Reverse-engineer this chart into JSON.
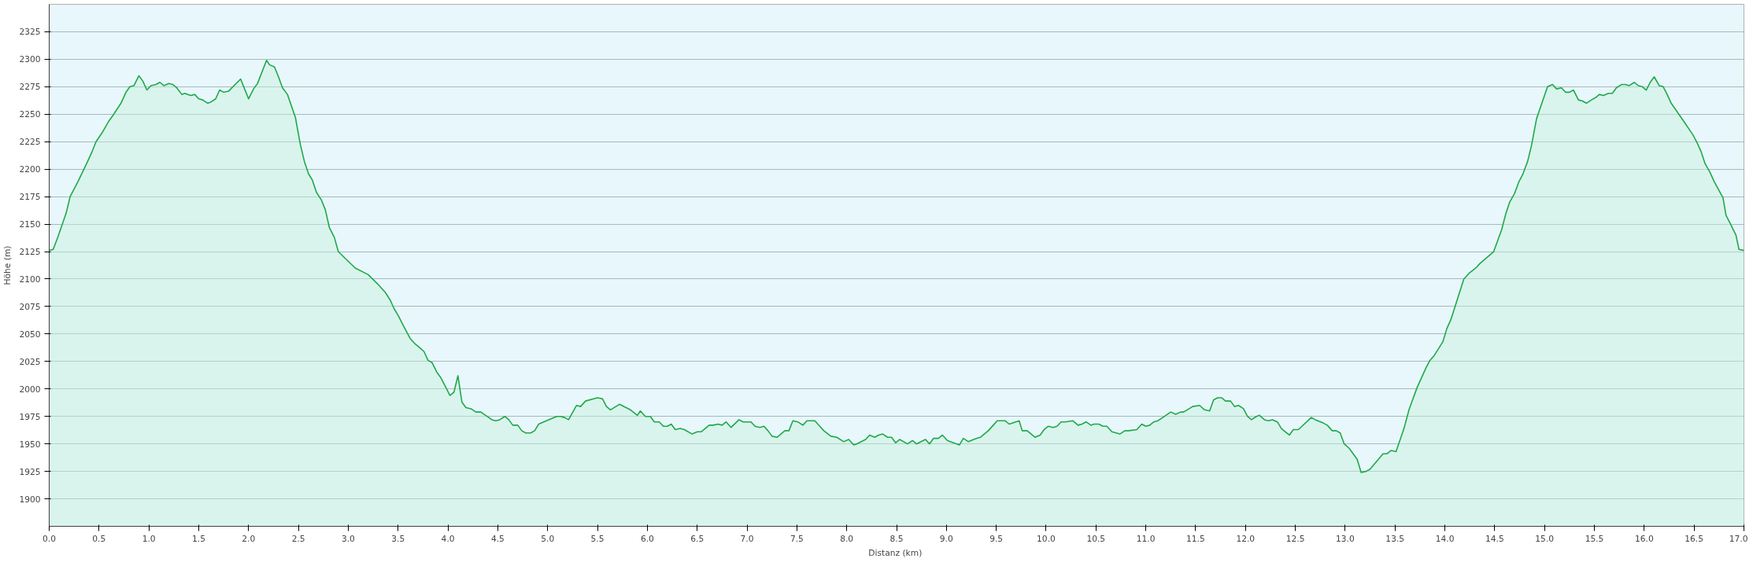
{
  "chart_data": {
    "type": "area",
    "xlabel": "Distanz  (km)",
    "ylabel": "Höhe (m)",
    "xlim": [
      0,
      17.0
    ],
    "ylim": [
      1875,
      2350
    ],
    "xticks": [
      {
        "value": 0,
        "label": "0.0"
      },
      0.5,
      {
        "value": 1,
        "label": "1.0"
      },
      1.5,
      {
        "value": 2,
        "label": "2.0"
      },
      2.5,
      {
        "value": 3,
        "label": "3.0"
      },
      3.5,
      {
        "value": 4,
        "label": "4.0"
      },
      4.5,
      {
        "value": 5,
        "label": "5.0"
      },
      5.5,
      {
        "value": 6,
        "label": "6.0"
      },
      6.5,
      {
        "value": 7,
        "label": "7.0"
      },
      7.5,
      {
        "value": 8,
        "label": "8.0"
      },
      8.5,
      {
        "value": 9,
        "label": "9.0"
      },
      9.5,
      {
        "value": 10,
        "label": "10.0"
      },
      10.5,
      {
        "value": 11,
        "label": "11.0"
      },
      11.5,
      {
        "value": 12,
        "label": "12.0"
      },
      12.5,
      {
        "value": 13,
        "label": "13.0"
      },
      13.5,
      {
        "value": 14,
        "label": "14.0"
      },
      14.5,
      {
        "value": 15,
        "label": "15.0"
      },
      15.5,
      {
        "value": 16,
        "label": "16.0"
      },
      16.5,
      {
        "value": 17,
        "label": "17.0"
      }
    ],
    "yticks": [
      1900,
      1925,
      1950,
      1975,
      2000,
      2025,
      2050,
      2075,
      2100,
      2125,
      2150,
      2175,
      2200,
      2225,
      2250,
      2275,
      2300,
      2325
    ],
    "grid": "y",
    "marker": "none",
    "line_style": "solid",
    "series": [
      {
        "color": "#1fa84a",
        "x": [
          0,
          0.04,
          0.09,
          0.17,
          0.21,
          0.29,
          0.38,
          0.43,
          0.47,
          0.53,
          0.6,
          0.64,
          0.72,
          0.77,
          0.81,
          0.85,
          0.9,
          0.94,
          0.98,
          1.02,
          1.07,
          1.11,
          1.15,
          1.2,
          1.24,
          1.28,
          1.33,
          1.36,
          1.42,
          1.46,
          1.5,
          1.54,
          1.59,
          1.62,
          1.67,
          1.71,
          1.75,
          1.8,
          1.92,
          1.96,
          2.0,
          2.05,
          2.09,
          2.18,
          2.21,
          2.26,
          2.3,
          2.34,
          2.39,
          2.47,
          2.52,
          2.56,
          2.6,
          2.64,
          2.68,
          2.73,
          2.77,
          2.81,
          2.86,
          2.9,
          2.99,
          3.07,
          3.2,
          3.29,
          3.37,
          3.42,
          3.46,
          3.5,
          3.55,
          3.62,
          3.67,
          3.71,
          3.76,
          3.8,
          3.84,
          3.89,
          3.93,
          3.97,
          4.02,
          4.06,
          4.1,
          4.14,
          4.18,
          4.23,
          4.28,
          4.33,
          4.36,
          4.41,
          4.44,
          4.48,
          4.52,
          4.57,
          4.61,
          4.65,
          4.7,
          4.74,
          4.78,
          4.83,
          4.87,
          4.91,
          4.96,
          5.09,
          5.13,
          5.17,
          5.21,
          5.29,
          5.33,
          5.38,
          5.5,
          5.55,
          5.59,
          5.63,
          5.72,
          5.83,
          5.9,
          5.93,
          5.98,
          6.03,
          6.07,
          6.12,
          6.16,
          6.2,
          6.24,
          6.28,
          6.33,
          6.37,
          6.45,
          6.5,
          6.54,
          6.62,
          6.66,
          6.71,
          6.75,
          6.79,
          6.84,
          6.92,
          6.96,
          7.04,
          7.08,
          7.13,
          7.17,
          7.21,
          7.25,
          7.3,
          7.38,
          7.42,
          7.46,
          7.51,
          7.56,
          7.6,
          7.68,
          7.73,
          7.77,
          7.84,
          7.9,
          7.97,
          8.02,
          8.07,
          8.1,
          8.19,
          8.23,
          8.28,
          8.32,
          8.36,
          8.41,
          8.45,
          8.49,
          8.53,
          8.61,
          8.66,
          8.7,
          8.79,
          8.83,
          8.87,
          8.92,
          8.96,
          9.01,
          9.13,
          9.17,
          9.22,
          9.3,
          9.34,
          9.42,
          9.47,
          9.51,
          9.59,
          9.63,
          9.73,
          9.76,
          9.81,
          9.89,
          9.94,
          9.98,
          10.02,
          10.07,
          10.11,
          10.15,
          10.19,
          10.27,
          10.32,
          10.36,
          10.4,
          10.45,
          10.48,
          10.53,
          10.57,
          10.61,
          10.66,
          10.74,
          10.79,
          10.83,
          10.91,
          10.96,
          11.0,
          11.04,
          11.08,
          11.12,
          11.17,
          11.25,
          11.3,
          11.35,
          11.38,
          11.47,
          11.54,
          11.59,
          11.64,
          11.68,
          11.72,
          11.76,
          11.8,
          11.85,
          11.89,
          11.93,
          11.98,
          12.02,
          12.06,
          12.11,
          12.14,
          12.19,
          12.23,
          12.27,
          12.32,
          12.36,
          12.4,
          12.44,
          12.48,
          12.53,
          12.66,
          12.7,
          12.78,
          12.82,
          12.87,
          12.91,
          12.95,
          12.99,
          13.04,
          13.12,
          13.16,
          13.21,
          13.25,
          13.38,
          13.42,
          13.46,
          13.51,
          13.59,
          13.64,
          13.72,
          13.81,
          13.85,
          13.89,
          13.98,
          14.02,
          14.06,
          14.19,
          14.24,
          14.31,
          14.35,
          14.49,
          14.57,
          14.61,
          14.65,
          14.7,
          14.74,
          14.78,
          14.83,
          14.87,
          14.92,
          14.95,
          15.03,
          15.08,
          15.12,
          15.17,
          15.21,
          15.25,
          15.29,
          15.34,
          15.38,
          15.42,
          15.47,
          15.51,
          15.55,
          15.59,
          15.64,
          15.68,
          15.72,
          15.77,
          15.81,
          15.85,
          15.9,
          15.94,
          15.98,
          16.02,
          16.06,
          16.1,
          16.15,
          16.19,
          16.23,
          16.27,
          16.4,
          16.49,
          16.53,
          16.57,
          16.61,
          16.66,
          16.7,
          16.79,
          16.82,
          16.86,
          16.92,
          16.95,
          17.0
        ],
        "values": [
          2126,
          2127,
          2139,
          2160,
          2175,
          2189,
          2206,
          2216,
          2225,
          2233,
          2244,
          2249,
          2260,
          2270,
          2275,
          2276,
          2285,
          2280,
          2272,
          2276,
          2277,
          2279,
          2276,
          2278,
          2277,
          2274,
          2268,
          2269,
          2267,
          2268,
          2264,
          2263,
          2260,
          2261,
          2264,
          2272,
          2270,
          2271,
          2282,
          2273,
          2264,
          2273,
          2278,
          2299,
          2295,
          2293,
          2284,
          2274,
          2268,
          2247,
          2222,
          2207,
          2196,
          2190,
          2179,
          2172,
          2163,
          2147,
          2138,
          2125,
          2117,
          2110,
          2104,
          2096,
          2088,
          2081,
          2073,
          2067,
          2058,
          2046,
          2041,
          2038,
          2034,
          2026,
          2024,
          2015,
          2010,
          2003,
          1994,
          1997,
          2012,
          1988,
          1983,
          1982,
          1979,
          1979,
          1977,
          1974,
          1972,
          1971,
          1972,
          1975,
          1972,
          1967,
          1967,
          1962,
          1960,
          1960,
          1962,
          1968,
          1970,
          1975,
          1975,
          1974,
          1972,
          1985,
          1984,
          1989,
          1992,
          1991,
          1984,
          1981,
          1986,
          1981,
          1976,
          1980,
          1975,
          1975,
          1970,
          1970,
          1966,
          1966,
          1968,
          1963,
          1964,
          1963,
          1959,
          1961,
          1961,
          1967,
          1967,
          1968,
          1967,
          1970,
          1965,
          1972,
          1970,
          1970,
          1966,
          1965,
          1966,
          1962,
          1957,
          1956,
          1962,
          1962,
          1971,
          1970,
          1967,
          1971,
          1971,
          1966,
          1962,
          1957,
          1956,
          1952,
          1954,
          1949,
          1950,
          1954,
          1958,
          1956,
          1958,
          1959,
          1956,
          1956,
          1951,
          1954,
          1950,
          1953,
          1950,
          1954,
          1950,
          1955,
          1955,
          1958,
          1953,
          1949,
          1955,
          1952,
          1955,
          1956,
          1962,
          1967,
          1971,
          1971,
          1968,
          1971,
          1962,
          1962,
          1956,
          1958,
          1963,
          1966,
          1965,
          1966,
          1970,
          1970,
          1971,
          1967,
          1968,
          1970,
          1967,
          1968,
          1968,
          1966,
          1966,
          1961,
          1959,
          1962,
          1962,
          1963,
          1968,
          1966,
          1967,
          1970,
          1971,
          1974,
          1979,
          1977,
          1979,
          1979,
          1984,
          1985,
          1981,
          1980,
          1990,
          1992,
          1992,
          1989,
          1989,
          1984,
          1985,
          1982,
          1975,
          1972,
          1975,
          1976,
          1972,
          1971,
          1972,
          1970,
          1964,
          1961,
          1958,
          1963,
          1963,
          1974,
          1972,
          1969,
          1967,
          1962,
          1962,
          1960,
          1950,
          1946,
          1936,
          1924,
          1925,
          1927,
          1941,
          1941,
          1944,
          1943,
          1964,
          1981,
          2001,
          2019,
          2026,
          2030,
          2043,
          2055,
          2063,
          2100,
          2105,
          2110,
          2114,
          2125,
          2145,
          2159,
          2170,
          2178,
          2188,
          2195,
          2207,
          2222,
          2246,
          2254,
          2275,
          2277,
          2273,
          2274,
          2270,
          2270,
          2272,
          2263,
          2262,
          2260,
          2263,
          2265,
          2268,
          2267,
          2269,
          2269,
          2274,
          2277,
          2277,
          2276,
          2279,
          2276,
          2275,
          2272,
          2279,
          2284,
          2276,
          2275,
          2268,
          2260,
          2243,
          2231,
          2224,
          2216,
          2205,
          2197,
          2189,
          2174,
          2158,
          2151,
          2140,
          2127,
          2126
        ]
      }
    ]
  }
}
